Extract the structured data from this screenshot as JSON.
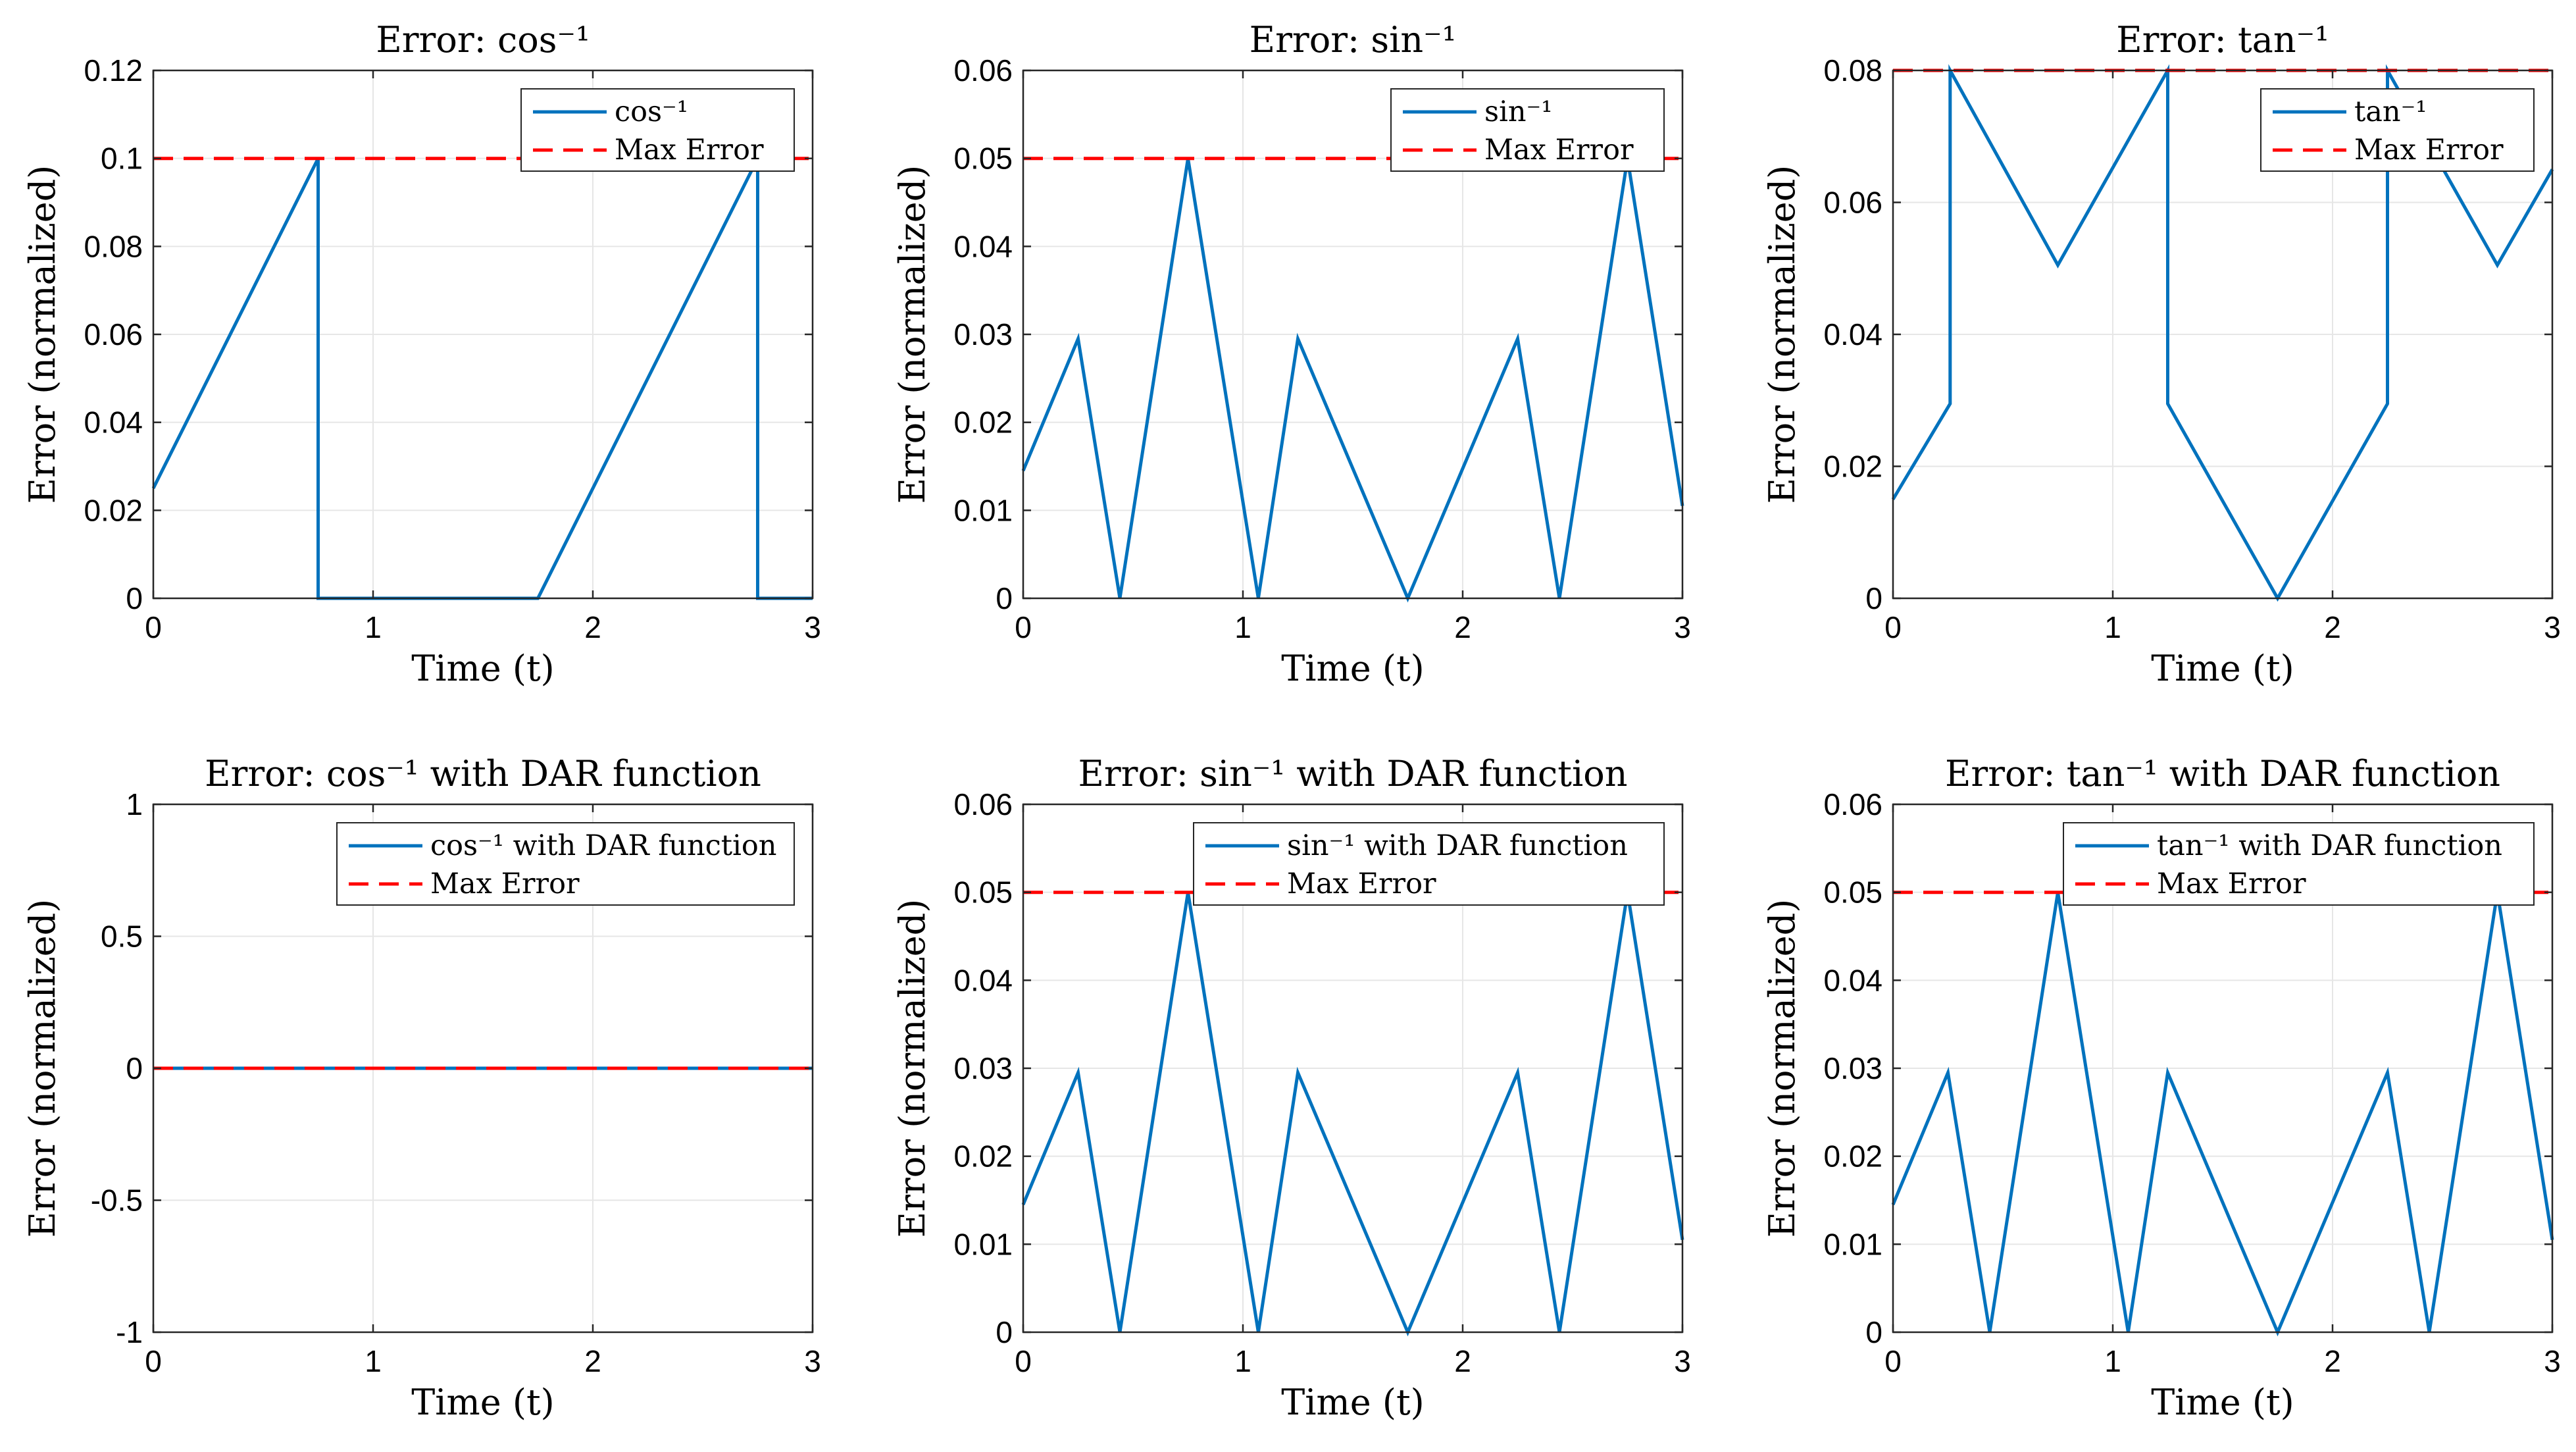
{
  "colors": {
    "series": "#0072bd",
    "max": "#ff0000",
    "grid": "#e6e6e6",
    "axis": "#262626"
  },
  "chart_data": [
    {
      "type": "line",
      "title": "Error: cos⁻¹",
      "xlabel": "Time (t)",
      "ylabel": "Error (normalized)",
      "xlim": [
        0,
        3
      ],
      "ylim": [
        0,
        0.12
      ],
      "xticks": [
        "0",
        "1",
        "2",
        "3"
      ],
      "yticks": [
        "0",
        "0.02",
        "0.04",
        "0.06",
        "0.08",
        "0.1",
        "0.12"
      ],
      "legend_position": "top-right",
      "series": [
        {
          "name": "cos⁻¹",
          "style": "solid",
          "x": [
            0,
            0.75,
            0.75,
            1.75,
            2.75,
            2.75,
            3
          ],
          "y": [
            0.025,
            0.1,
            0,
            0,
            0.1,
            0,
            0
          ]
        },
        {
          "name": "Max Error",
          "style": "dashed",
          "x": [
            0,
            3
          ],
          "y": [
            0.1,
            0.1
          ]
        }
      ]
    },
    {
      "type": "line",
      "title": "Error: sin⁻¹",
      "xlabel": "Time (t)",
      "ylabel": "Error (normalized)",
      "xlim": [
        0,
        3
      ],
      "ylim": [
        0,
        0.06
      ],
      "xticks": [
        "0",
        "1",
        "2",
        "3"
      ],
      "yticks": [
        "0",
        "0.01",
        "0.02",
        "0.03",
        "0.04",
        "0.05",
        "0.06"
      ],
      "legend_position": "top-right",
      "series": [
        {
          "name": "sin⁻¹",
          "style": "solid",
          "x": [
            0,
            0.25,
            0.44,
            0.75,
            1.07,
            1.25,
            1.75,
            2.25,
            2.44,
            2.75,
            3
          ],
          "y": [
            0.0145,
            0.0295,
            0,
            0.05,
            0,
            0.0295,
            0,
            0.0295,
            0,
            0.05,
            0.0105
          ]
        },
        {
          "name": "Max Error",
          "style": "dashed",
          "x": [
            0,
            3
          ],
          "y": [
            0.05,
            0.05
          ]
        }
      ]
    },
    {
      "type": "line",
      "title": "Error: tan⁻¹",
      "xlabel": "Time (t)",
      "ylabel": "Error (normalized)",
      "xlim": [
        0,
        3
      ],
      "ylim": [
        0,
        0.08
      ],
      "xticks": [
        "0",
        "1",
        "2",
        "3"
      ],
      "yticks": [
        "0",
        "0.02",
        "0.04",
        "0.06",
        "0.08"
      ],
      "legend_position": "top-right",
      "series": [
        {
          "name": "tan⁻¹",
          "style": "solid",
          "x": [
            0,
            0.26,
            0.26,
            0.75,
            1.25,
            1.25,
            1.75,
            2.25,
            2.25,
            2.75,
            3
          ],
          "y": [
            0.015,
            0.0295,
            0.08,
            0.0505,
            0.08,
            0.0295,
            0,
            0.0295,
            0.08,
            0.0505,
            0.065
          ]
        },
        {
          "name": "Max Error",
          "style": "dashed",
          "x": [
            0,
            3
          ],
          "y": [
            0.08,
            0.08
          ]
        }
      ]
    },
    {
      "type": "line",
      "title": "Error: cos⁻¹ with DAR function",
      "xlabel": "Time (t)",
      "ylabel": "Error (normalized)",
      "xlim": [
        0,
        3
      ],
      "ylim": [
        -1,
        1
      ],
      "xticks": [
        "0",
        "1",
        "2",
        "3"
      ],
      "yticks": [
        "-1",
        "-0.5",
        "0",
        "0.5",
        "1"
      ],
      "legend_position": "top-right",
      "series": [
        {
          "name": "cos⁻¹ with DAR function",
          "style": "solid",
          "x": [
            0,
            3
          ],
          "y": [
            0,
            0
          ]
        },
        {
          "name": "Max Error",
          "style": "dashed",
          "x": [
            0,
            3
          ],
          "y": [
            0,
            0
          ]
        }
      ]
    },
    {
      "type": "line",
      "title": "Error: sin⁻¹ with DAR function",
      "xlabel": "Time (t)",
      "ylabel": "Error (normalized)",
      "xlim": [
        0,
        3
      ],
      "ylim": [
        0,
        0.06
      ],
      "xticks": [
        "0",
        "1",
        "2",
        "3"
      ],
      "yticks": [
        "0",
        "0.01",
        "0.02",
        "0.03",
        "0.04",
        "0.05",
        "0.06"
      ],
      "legend_position": "top-right",
      "series": [
        {
          "name": "sin⁻¹ with DAR function",
          "style": "solid",
          "x": [
            0,
            0.25,
            0.44,
            0.75,
            1.07,
            1.25,
            1.75,
            2.25,
            2.44,
            2.75,
            3
          ],
          "y": [
            0.0145,
            0.0295,
            0,
            0.05,
            0,
            0.0295,
            0,
            0.0295,
            0,
            0.05,
            0.0105
          ]
        },
        {
          "name": "Max Error",
          "style": "dashed",
          "x": [
            0,
            3
          ],
          "y": [
            0.05,
            0.05
          ]
        }
      ]
    },
    {
      "type": "line",
      "title": "Error: tan⁻¹ with DAR function",
      "xlabel": "Time (t)",
      "ylabel": "Error (normalized)",
      "xlim": [
        0,
        3
      ],
      "ylim": [
        0,
        0.06
      ],
      "xticks": [
        "0",
        "1",
        "2",
        "3"
      ],
      "yticks": [
        "0",
        "0.01",
        "0.02",
        "0.03",
        "0.04",
        "0.05",
        "0.06"
      ],
      "legend_position": "top-right",
      "series": [
        {
          "name": "tan⁻¹ with DAR function",
          "style": "solid",
          "x": [
            0,
            0.25,
            0.44,
            0.75,
            1.07,
            1.25,
            1.75,
            2.25,
            2.44,
            2.75,
            3
          ],
          "y": [
            0.0145,
            0.0295,
            0,
            0.05,
            0,
            0.0295,
            0,
            0.0295,
            0,
            0.05,
            0.0105
          ]
        },
        {
          "name": "Max Error",
          "style": "dashed",
          "x": [
            0,
            3
          ],
          "y": [
            0.05,
            0.05
          ]
        }
      ]
    }
  ]
}
